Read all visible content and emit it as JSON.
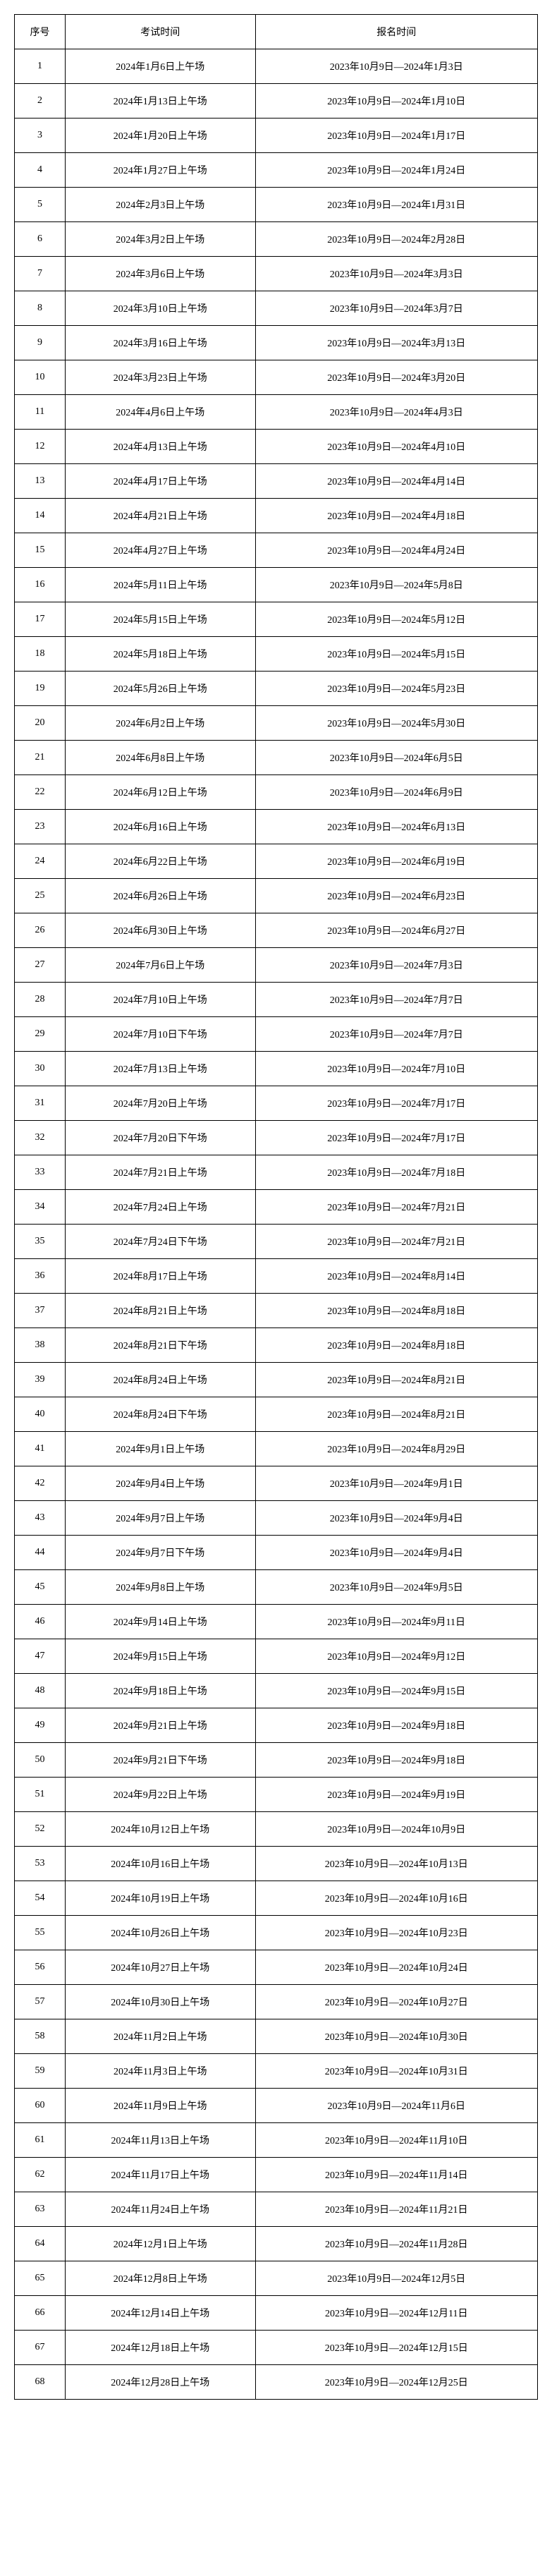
{
  "headers": {
    "seq": "序号",
    "exam": "考试时间",
    "reg": "报名时间"
  },
  "rows": [
    {
      "n": "1",
      "e": "2024年1月6日上午场",
      "r": "2023年10月9日—2024年1月3日"
    },
    {
      "n": "2",
      "e": "2024年1月13日上午场",
      "r": "2023年10月9日—2024年1月10日"
    },
    {
      "n": "3",
      "e": "2024年1月20日上午场",
      "r": "2023年10月9日—2024年1月17日"
    },
    {
      "n": "4",
      "e": "2024年1月27日上午场",
      "r": "2023年10月9日—2024年1月24日"
    },
    {
      "n": "5",
      "e": "2024年2月3日上午场",
      "r": "2023年10月9日—2024年1月31日"
    },
    {
      "n": "6",
      "e": "2024年3月2日上午场",
      "r": "2023年10月9日—2024年2月28日"
    },
    {
      "n": "7",
      "e": "2024年3月6日上午场",
      "r": "2023年10月9日—2024年3月3日"
    },
    {
      "n": "8",
      "e": "2024年3月10日上午场",
      "r": "2023年10月9日—2024年3月7日"
    },
    {
      "n": "9",
      "e": "2024年3月16日上午场",
      "r": "2023年10月9日—2024年3月13日"
    },
    {
      "n": "10",
      "e": "2024年3月23日上午场",
      "r": "2023年10月9日—2024年3月20日"
    },
    {
      "n": "11",
      "e": "2024年4月6日上午场",
      "r": "2023年10月9日—2024年4月3日"
    },
    {
      "n": "12",
      "e": "2024年4月13日上午场",
      "r": "2023年10月9日—2024年4月10日"
    },
    {
      "n": "13",
      "e": "2024年4月17日上午场",
      "r": "2023年10月9日—2024年4月14日"
    },
    {
      "n": "14",
      "e": "2024年4月21日上午场",
      "r": "2023年10月9日—2024年4月18日"
    },
    {
      "n": "15",
      "e": "2024年4月27日上午场",
      "r": "2023年10月9日—2024年4月24日"
    },
    {
      "n": "16",
      "e": "2024年5月11日上午场",
      "r": "2023年10月9日—2024年5月8日"
    },
    {
      "n": "17",
      "e": "2024年5月15日上午场",
      "r": "2023年10月9日—2024年5月12日"
    },
    {
      "n": "18",
      "e": "2024年5月18日上午场",
      "r": "2023年10月9日—2024年5月15日"
    },
    {
      "n": "19",
      "e": "2024年5月26日上午场",
      "r": "2023年10月9日—2024年5月23日"
    },
    {
      "n": "20",
      "e": "2024年6月2日上午场",
      "r": "2023年10月9日—2024年5月30日"
    },
    {
      "n": "21",
      "e": "2024年6月8日上午场",
      "r": "2023年10月9日—2024年6月5日"
    },
    {
      "n": "22",
      "e": "2024年6月12日上午场",
      "r": "2023年10月9日—2024年6月9日"
    },
    {
      "n": "23",
      "e": "2024年6月16日上午场",
      "r": "2023年10月9日—2024年6月13日"
    },
    {
      "n": "24",
      "e": "2024年6月22日上午场",
      "r": "2023年10月9日—2024年6月19日"
    },
    {
      "n": "25",
      "e": "2024年6月26日上午场",
      "r": "2023年10月9日—2024年6月23日"
    },
    {
      "n": "26",
      "e": "2024年6月30日上午场",
      "r": "2023年10月9日—2024年6月27日"
    },
    {
      "n": "27",
      "e": "2024年7月6日上午场",
      "r": "2023年10月9日—2024年7月3日"
    },
    {
      "n": "28",
      "e": "2024年7月10日上午场",
      "r": "2023年10月9日—2024年7月7日"
    },
    {
      "n": "29",
      "e": "2024年7月10日下午场",
      "r": "2023年10月9日—2024年7月7日"
    },
    {
      "n": "30",
      "e": "2024年7月13日上午场",
      "r": "2023年10月9日—2024年7月10日"
    },
    {
      "n": "31",
      "e": "2024年7月20日上午场",
      "r": "2023年10月9日—2024年7月17日"
    },
    {
      "n": "32",
      "e": "2024年7月20日下午场",
      "r": "2023年10月9日—2024年7月17日"
    },
    {
      "n": "33",
      "e": "2024年7月21日上午场",
      "r": "2023年10月9日—2024年7月18日"
    },
    {
      "n": "34",
      "e": "2024年7月24日上午场",
      "r": "2023年10月9日—2024年7月21日"
    },
    {
      "n": "35",
      "e": "2024年7月24日下午场",
      "r": "2023年10月9日—2024年7月21日"
    },
    {
      "n": "36",
      "e": "2024年8月17日上午场",
      "r": "2023年10月9日—2024年8月14日"
    },
    {
      "n": "37",
      "e": "2024年8月21日上午场",
      "r": "2023年10月9日—2024年8月18日"
    },
    {
      "n": "38",
      "e": "2024年8月21日下午场",
      "r": "2023年10月9日—2024年8月18日"
    },
    {
      "n": "39",
      "e": "2024年8月24日上午场",
      "r": "2023年10月9日—2024年8月21日"
    },
    {
      "n": "40",
      "e": "2024年8月24日下午场",
      "r": "2023年10月9日—2024年8月21日"
    },
    {
      "n": "41",
      "e": "2024年9月1日上午场",
      "r": "2023年10月9日—2024年8月29日"
    },
    {
      "n": "42",
      "e": "2024年9月4日上午场",
      "r": "2023年10月9日—2024年9月1日"
    },
    {
      "n": "43",
      "e": "2024年9月7日上午场",
      "r": "2023年10月9日—2024年9月4日"
    },
    {
      "n": "44",
      "e": "2024年9月7日下午场",
      "r": "2023年10月9日—2024年9月4日"
    },
    {
      "n": "45",
      "e": "2024年9月8日上午场",
      "r": "2023年10月9日—2024年9月5日"
    },
    {
      "n": "46",
      "e": "2024年9月14日上午场",
      "r": "2023年10月9日—2024年9月11日"
    },
    {
      "n": "47",
      "e": "2024年9月15日上午场",
      "r": "2023年10月9日—2024年9月12日"
    },
    {
      "n": "48",
      "e": "2024年9月18日上午场",
      "r": "2023年10月9日—2024年9月15日"
    },
    {
      "n": "49",
      "e": "2024年9月21日上午场",
      "r": "2023年10月9日—2024年9月18日"
    },
    {
      "n": "50",
      "e": "2024年9月21日下午场",
      "r": "2023年10月9日—2024年9月18日"
    },
    {
      "n": "51",
      "e": "2024年9月22日上午场",
      "r": "2023年10月9日—2024年9月19日"
    },
    {
      "n": "52",
      "e": "2024年10月12日上午场",
      "r": "2023年10月9日—2024年10月9日"
    },
    {
      "n": "53",
      "e": "2024年10月16日上午场",
      "r": "2023年10月9日—2024年10月13日"
    },
    {
      "n": "54",
      "e": "2024年10月19日上午场",
      "r": "2023年10月9日—2024年10月16日"
    },
    {
      "n": "55",
      "e": "2024年10月26日上午场",
      "r": "2023年10月9日—2024年10月23日"
    },
    {
      "n": "56",
      "e": "2024年10月27日上午场",
      "r": "2023年10月9日—2024年10月24日"
    },
    {
      "n": "57",
      "e": "2024年10月30日上午场",
      "r": "2023年10月9日—2024年10月27日"
    },
    {
      "n": "58",
      "e": "2024年11月2日上午场",
      "r": "2023年10月9日—2024年10月30日"
    },
    {
      "n": "59",
      "e": "2024年11月3日上午场",
      "r": "2023年10月9日—2024年10月31日"
    },
    {
      "n": "60",
      "e": "2024年11月9日上午场",
      "r": "2023年10月9日—2024年11月6日"
    },
    {
      "n": "61",
      "e": "2024年11月13日上午场",
      "r": "2023年10月9日—2024年11月10日"
    },
    {
      "n": "62",
      "e": "2024年11月17日上午场",
      "r": "2023年10月9日—2024年11月14日"
    },
    {
      "n": "63",
      "e": "2024年11月24日上午场",
      "r": "2023年10月9日—2024年11月21日"
    },
    {
      "n": "64",
      "e": "2024年12月1日上午场",
      "r": "2023年10月9日—2024年11月28日"
    },
    {
      "n": "65",
      "e": "2024年12月8日上午场",
      "r": "2023年10月9日—2024年12月5日"
    },
    {
      "n": "66",
      "e": "2024年12月14日上午场",
      "r": "2023年10月9日—2024年12月11日"
    },
    {
      "n": "67",
      "e": "2024年12月18日上午场",
      "r": "2023年10月9日—2024年12月15日"
    },
    {
      "n": "68",
      "e": "2024年12月28日上午场",
      "r": "2023年10月9日—2024年12月25日"
    }
  ]
}
